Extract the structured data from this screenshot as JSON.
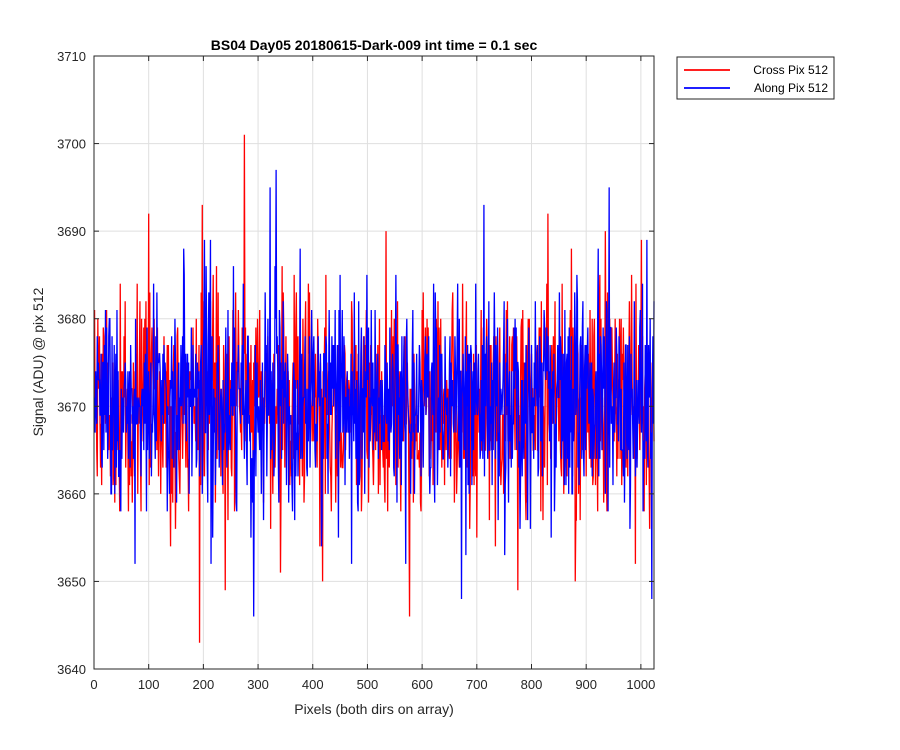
{
  "chart_data": {
    "type": "line",
    "title": "BS04 Day05 20180615-Dark-009 int time = 0.1 sec",
    "xlabel": "Pixels (both dirs on array)",
    "ylabel": "Signal (ADU) @ pix 512",
    "xlim": [
      0,
      1024
    ],
    "ylim": [
      3640,
      3710
    ],
    "xticks": [
      0,
      100,
      200,
      300,
      400,
      500,
      600,
      700,
      800,
      900,
      1000
    ],
    "yticks": [
      3640,
      3650,
      3660,
      3670,
      3680,
      3690,
      3700,
      3710
    ],
    "grid": true,
    "legend_position": "outside-top-right",
    "series": [
      {
        "name": "Cross Pix 512",
        "color": "#ff0000",
        "x_start": 1,
        "x_step": 1,
        "mean": 3670.5,
        "stdev": 6.8,
        "peaks": [
          [
            275,
            3701
          ],
          [
            198,
            3693
          ],
          [
            100,
            3692
          ],
          [
            193,
            3643
          ],
          [
            577,
            3646
          ],
          [
            418,
            3650
          ],
          [
            775,
            3649
          ],
          [
            880,
            3650
          ],
          [
            240,
            3649
          ],
          [
            935,
            3690
          ],
          [
            830,
            3692
          ]
        ]
      },
      {
        "name": "Along Pix 512",
        "color": "#0000ff",
        "x_start": 1,
        "x_step": 1,
        "mean": 3670.5,
        "stdev": 6.3,
        "peaks": [
          [
            333,
            3697
          ],
          [
            322,
            3695
          ],
          [
            942,
            3695
          ],
          [
            292,
            3646
          ],
          [
            1020,
            3648
          ],
          [
            713,
            3693
          ],
          [
            672,
            3648
          ],
          [
            75,
            3652
          ],
          [
            570,
            3652
          ]
        ]
      }
    ]
  }
}
